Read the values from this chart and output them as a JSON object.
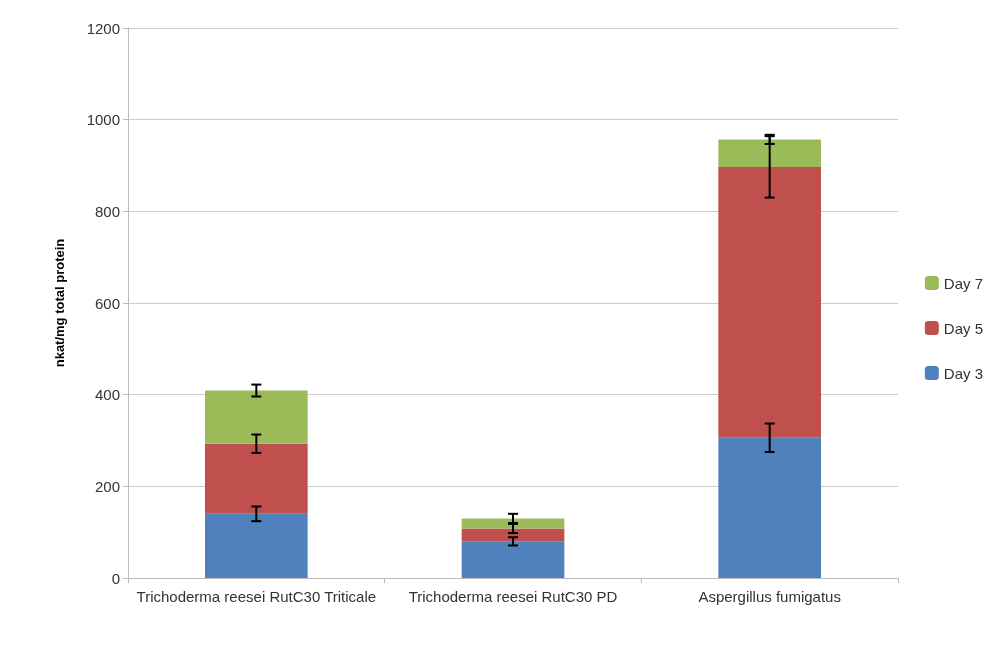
{
  "chart_data": {
    "type": "bar",
    "stacked": true,
    "ylabel": "nkat/mg total protein",
    "categories": [
      "Trichoderma reesei RutC30 Triticale",
      "Trichoderma reesei RutC30 PD",
      "Aspergillus fumigatus"
    ],
    "series": [
      {
        "name": "Day 3",
        "color": "#4f81bd",
        "values": [
          140,
          80,
          306
        ],
        "errors": [
          16,
          9,
          31
        ]
      },
      {
        "name": "Day 5",
        "color": "#c0504d",
        "values": [
          153,
          28,
          591
        ],
        "errors": [
          20,
          10,
          67
        ]
      },
      {
        "name": "Day 7",
        "color": "#9bbb59",
        "values": [
          116,
          22,
          60
        ],
        "errors": [
          13,
          10,
          10
        ]
      }
    ],
    "ylim": [
      0,
      1200
    ],
    "yticks": [
      0,
      200,
      400,
      600,
      800,
      1000,
      1200
    ],
    "grid": "y",
    "legend": "right"
  }
}
